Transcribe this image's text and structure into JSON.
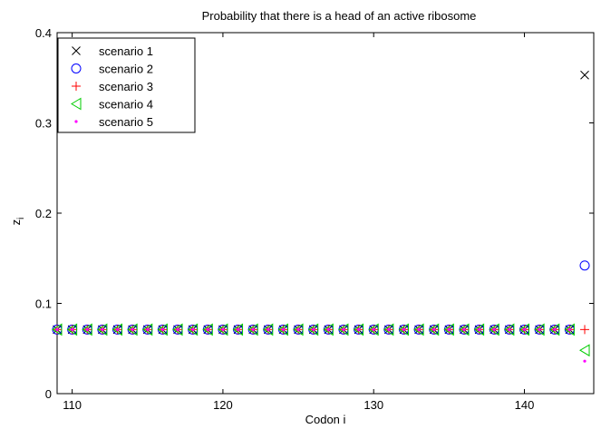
{
  "chart_data": {
    "type": "scatter",
    "title": "Probability that there is a head of an active ribosome",
    "xlabel": "Codon i",
    "ylabel": "z",
    "ylabel_subscript": "i",
    "xlim": [
      109,
      144.6
    ],
    "ylim": [
      0,
      0.4
    ],
    "xticks": [
      110,
      120,
      130,
      140
    ],
    "yticks": [
      0,
      0.1,
      0.2,
      0.3,
      0.4
    ],
    "ytick_labels": [
      "0",
      "0.1",
      "0.2",
      "0.3",
      "0.4"
    ],
    "grid": false,
    "legend_position": "top-left",
    "x_start": 109,
    "x_end": 143,
    "common_value": 0.071,
    "series": [
      {
        "name": "scenario 1",
        "marker": "x",
        "color": "#000000",
        "last_x": 144,
        "last_y": 0.353
      },
      {
        "name": "scenario 2",
        "marker": "o",
        "color": "#0000ff",
        "last_x": 144,
        "last_y": 0.142
      },
      {
        "name": "scenario 3",
        "marker": "+",
        "color": "#ff0000",
        "last_x": 144,
        "last_y": 0.071
      },
      {
        "name": "scenario 4",
        "marker": "<",
        "color": "#00cc00",
        "last_x": 144,
        "last_y": 0.048
      },
      {
        "name": "scenario 5",
        "marker": ".",
        "color": "#ff00ff",
        "last_x": 144,
        "last_y": 0.036
      }
    ]
  }
}
